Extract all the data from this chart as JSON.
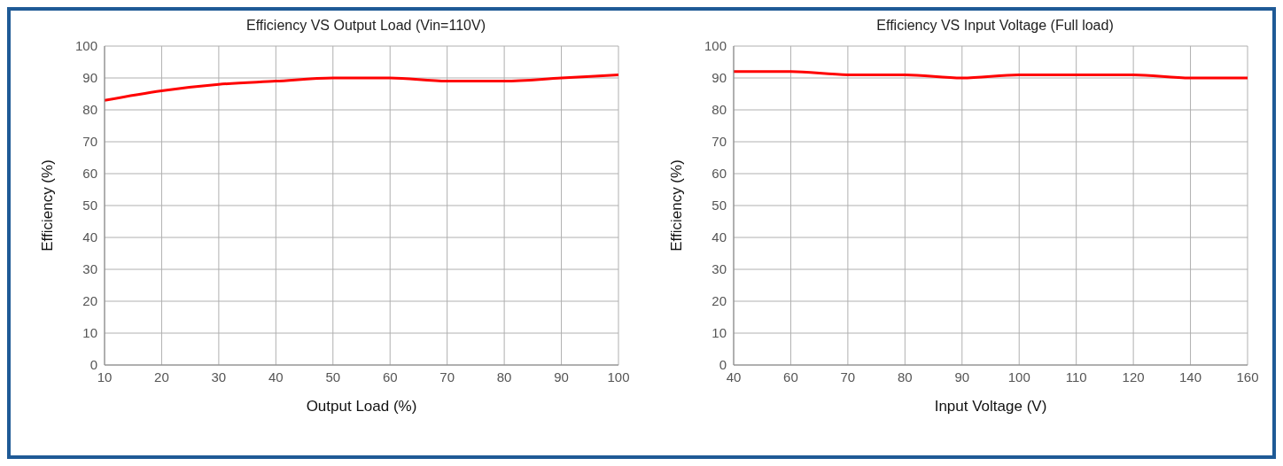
{
  "chart_data": [
    {
      "type": "line",
      "title": "Efficiency VS Output Load (Vin=110V)",
      "xlabel": "Output Load (%)",
      "ylabel": "Efficiency (%)",
      "x": [
        10,
        20,
        30,
        40,
        50,
        60,
        70,
        80,
        90,
        100
      ],
      "values": [
        83,
        86,
        88,
        89,
        90,
        90,
        89,
        89,
        90,
        91
      ],
      "color": "#ff0000",
      "xlim": [
        10,
        100
      ],
      "xticks": [
        10,
        20,
        30,
        40,
        50,
        60,
        70,
        80,
        90,
        100
      ],
      "ylim": [
        0,
        100
      ],
      "yticks": [
        0,
        10,
        20,
        30,
        40,
        50,
        60,
        70,
        80,
        90,
        100
      ],
      "grid": true,
      "marker": "none",
      "line_style": "solid"
    },
    {
      "type": "line",
      "title": "Efficiency VS Input Voltage (Full load)",
      "xlabel": "Input Voltage (V)",
      "ylabel": "Efficiency (%)",
      "categories": [
        "40",
        "60",
        "70",
        "80",
        "90",
        "100",
        "110",
        "120",
        "140",
        "160"
      ],
      "values": [
        92,
        92,
        91,
        91,
        90,
        91,
        91,
        91,
        90,
        90
      ],
      "color": "#ff0000",
      "ylim": [
        0,
        100
      ],
      "yticks": [
        0,
        10,
        20,
        30,
        40,
        50,
        60,
        70,
        80,
        90,
        100
      ],
      "grid": true,
      "marker": "none",
      "line_style": "solid"
    }
  ]
}
